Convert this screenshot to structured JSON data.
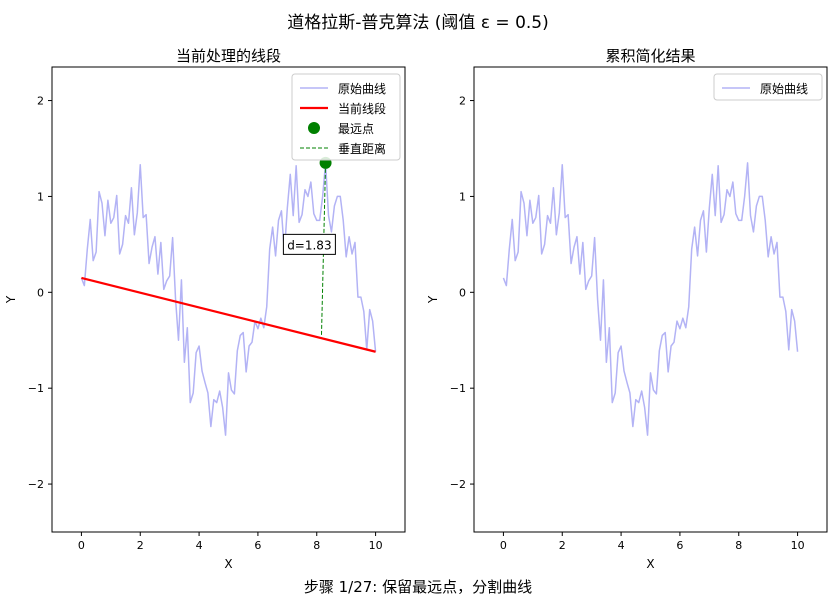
{
  "figure": {
    "title": "道格拉斯-普克算法 (阈值 ε = 0.5)",
    "caption": "步骤 1/27: 保留最远点，分割曲线"
  },
  "chart_data": [
    {
      "type": "line",
      "title": "当前处理的线段",
      "xlabel": "X",
      "ylabel": "Y",
      "xlim": [
        -1.0,
        11.0
      ],
      "ylim": [
        -2.5,
        2.35
      ],
      "xticks": [
        "0",
        "2",
        "4",
        "6",
        "8",
        "10"
      ],
      "yticks": [
        "−2",
        "−1",
        "0",
        "1",
        "2"
      ],
      "legend": [
        "原始曲线",
        "当前线段",
        "最远点",
        "垂直距离"
      ],
      "legend_position": "upper right",
      "series": [
        {
          "name": "原始曲线",
          "color": "#b3b3f5",
          "x": [
            0,
            0.1,
            0.2,
            0.3,
            0.4,
            0.5,
            0.6,
            0.7,
            0.8,
            0.9,
            1.0,
            1.1,
            1.2,
            1.3,
            1.4,
            1.5,
            1.6,
            1.7,
            1.8,
            1.9,
            2.0,
            2.1,
            2.2,
            2.3,
            2.4,
            2.5,
            2.6,
            2.7,
            2.8,
            2.9,
            3.0,
            3.1,
            3.2,
            3.3,
            3.4,
            3.5,
            3.6,
            3.7,
            3.8,
            3.9,
            4.0,
            4.1,
            4.2,
            4.3,
            4.4,
            4.5,
            4.6,
            4.7,
            4.8,
            4.9,
            5.0,
            5.1,
            5.2,
            5.3,
            5.4,
            5.5,
            5.6,
            5.7,
            5.8,
            5.9,
            6.0,
            6.1,
            6.2,
            6.3,
            6.4,
            6.5,
            6.6,
            6.7,
            6.8,
            6.9,
            7.0,
            7.1,
            7.2,
            7.3,
            7.4,
            7.5,
            7.6,
            7.7,
            7.8,
            7.9,
            8.0,
            8.1,
            8.2,
            8.3,
            8.4,
            8.5,
            8.6,
            8.7,
            8.8,
            8.9,
            9.0,
            9.1,
            9.2,
            9.3,
            9.4,
            9.5,
            9.6,
            9.7,
            9.8,
            9.9,
            10.0
          ],
          "y": [
            0.15,
            0.07,
            0.45,
            0.76,
            0.33,
            0.42,
            1.05,
            0.93,
            0.59,
            0.96,
            0.72,
            0.78,
            1.01,
            0.4,
            0.5,
            0.8,
            0.72,
            1.09,
            0.6,
            0.83,
            1.33,
            0.78,
            0.81,
            0.3,
            0.47,
            0.58,
            0.19,
            0.52,
            0.03,
            0.12,
            0.17,
            0.57,
            -0.07,
            -0.5,
            0.13,
            -0.73,
            -0.37,
            -1.15,
            -1.05,
            -0.63,
            -0.56,
            -0.82,
            -0.94,
            -1.05,
            -1.4,
            -1.12,
            -1.15,
            -1.03,
            -1.2,
            -1.49,
            -0.84,
            -1.02,
            -1.06,
            -0.61,
            -0.45,
            -0.42,
            -0.83,
            -0.56,
            -0.52,
            -0.3,
            -0.38,
            -0.27,
            -0.37,
            -0.15,
            0.45,
            0.68,
            0.38,
            0.75,
            0.85,
            0.42,
            0.88,
            1.23,
            0.8,
            1.32,
            0.73,
            0.81,
            1.07,
            1.0,
            1.15,
            0.82,
            0.75,
            0.75,
            1.0,
            1.35,
            0.8,
            0.63,
            0.9,
            1.0,
            1.0,
            0.75,
            0.37,
            0.58,
            0.4,
            0.52,
            -0.05,
            -0.05,
            -0.2,
            -0.6,
            -0.18,
            -0.3,
            -0.62
          ]
        },
        {
          "name": "当前线段",
          "color": "#ff0000",
          "x": [
            0,
            10
          ],
          "y": [
            0.15,
            -0.62
          ]
        }
      ],
      "points": [
        {
          "name": "最远点",
          "color": "#008000",
          "x": 8.3,
          "y": 1.35
        }
      ],
      "segments": [
        {
          "name": "垂直距离",
          "color": "#008000",
          "x": [
            8.3,
            8.16
          ],
          "y": [
            1.35,
            -0.46
          ]
        }
      ],
      "annotations": [
        {
          "text": "d=1.83",
          "x": 7.75,
          "y": 0.5
        }
      ]
    },
    {
      "type": "line",
      "title": "累积简化结果",
      "xlabel": "X",
      "ylabel": "Y",
      "xlim": [
        -1.0,
        11.0
      ],
      "ylim": [
        -2.5,
        2.35
      ],
      "xticks": [
        "0",
        "2",
        "4",
        "6",
        "8",
        "10"
      ],
      "yticks": [
        "−2",
        "−1",
        "0",
        "1",
        "2"
      ],
      "legend": [
        "原始曲线"
      ],
      "legend_position": "upper right",
      "series": [
        {
          "name": "原始曲线",
          "color": "#b3b3f5",
          "same_as": "chart_data.0.series.0"
        }
      ]
    }
  ]
}
